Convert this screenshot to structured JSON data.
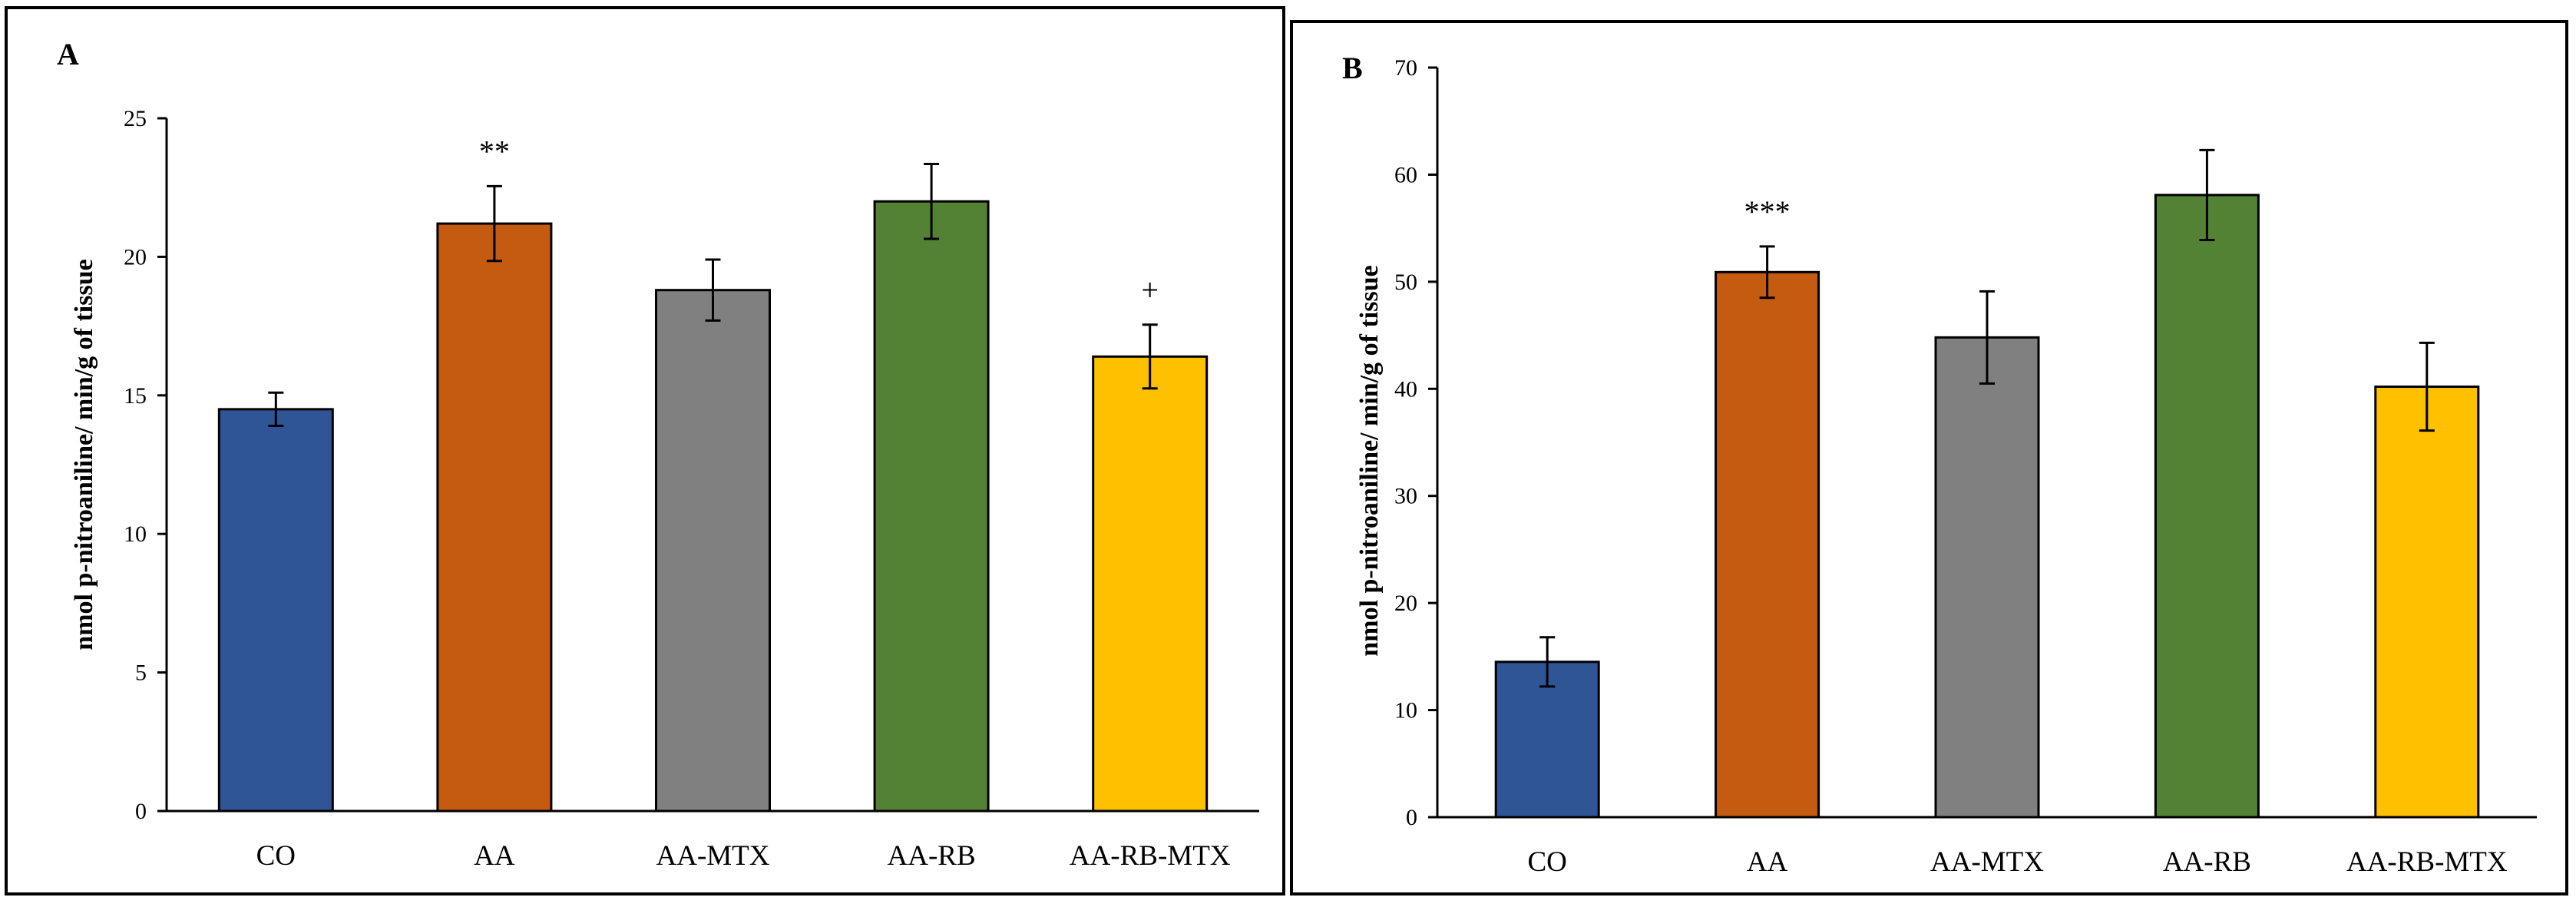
{
  "chart_data": [
    {
      "panel": "A",
      "type": "bar",
      "categories": [
        "CO",
        "AA",
        "AA-MTX",
        "AA-RB",
        "AA-RB-MTX"
      ],
      "values": [
        14.5,
        21.2,
        18.8,
        22.0,
        16.4
      ],
      "errors": [
        0.6,
        1.35,
        1.1,
        1.35,
        1.15
      ],
      "colors": [
        "#2F5597",
        "#C55A11",
        "#808080",
        "#548235",
        "#FFC000"
      ],
      "annotations": [
        "",
        "**",
        "",
        "",
        "+"
      ],
      "ylabel": "nmol p-nitroaniline/ min/g of tissue",
      "xlabel": "",
      "ylim": [
        0,
        25
      ],
      "yticks": [
        0,
        5,
        10,
        15,
        20,
        25
      ],
      "grid": false
    },
    {
      "panel": "B",
      "type": "bar",
      "categories": [
        "CO",
        "AA",
        "AA-MTX",
        "AA-RB",
        "AA-RB-MTX"
      ],
      "values": [
        14.5,
        50.9,
        44.8,
        58.1,
        40.2
      ],
      "errors": [
        2.3,
        2.4,
        4.3,
        4.2,
        4.1
      ],
      "colors": [
        "#2F5597",
        "#C55A11",
        "#808080",
        "#548235",
        "#FFC000"
      ],
      "annotations": [
        "",
        "***",
        "",
        "",
        ""
      ],
      "ylabel": "nmol p-nitroaniline/ min/g of tissue",
      "xlabel": "",
      "ylim": [
        0,
        70
      ],
      "yticks": [
        0,
        10,
        20,
        30,
        40,
        50,
        60,
        70
      ],
      "grid": false
    }
  ]
}
